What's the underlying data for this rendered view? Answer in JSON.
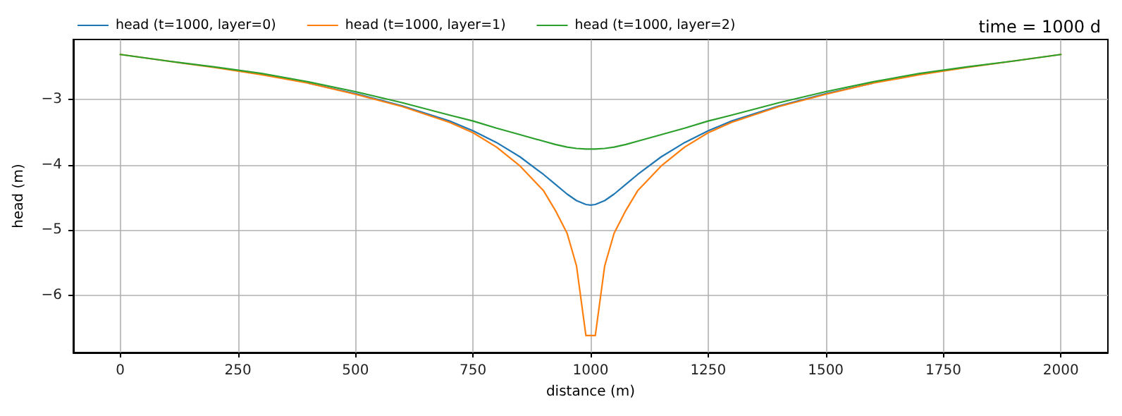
{
  "chart_data": {
    "type": "line",
    "title": "time = 1000 d",
    "xlabel": "distance (m)",
    "ylabel": "head (m)",
    "x": [
      0,
      100,
      200,
      300,
      400,
      500,
      600,
      700,
      750,
      800,
      850,
      900,
      925,
      950,
      970,
      990,
      1000,
      1010,
      1030,
      1050,
      1075,
      1100,
      1150,
      1200,
      1250,
      1300,
      1400,
      1500,
      1600,
      1700,
      1800,
      1900,
      2000
    ],
    "series": [
      {
        "name": "head (t=1000, layer=0)",
        "color": "#1f77b4",
        "values": [
          null,
          null,
          null,
          null,
          -2.75,
          -2.91,
          -3.1,
          -3.33,
          -3.48,
          -3.66,
          -3.88,
          -4.15,
          -4.3,
          -4.45,
          -4.55,
          -4.61,
          -4.62,
          -4.61,
          -4.55,
          -4.45,
          -4.3,
          -4.15,
          -3.88,
          -3.66,
          -3.48,
          -3.33,
          -3.1,
          -2.91,
          -2.75,
          null,
          null,
          null,
          null
        ]
      },
      {
        "name": "head (t=1000, layer=1)",
        "color": "#ff7f0e",
        "values": [
          -2.31,
          -2.41,
          -2.51,
          -2.62,
          -2.75,
          -2.92,
          -3.11,
          -3.35,
          -3.51,
          -3.73,
          -4.02,
          -4.4,
          -4.7,
          -5.05,
          -5.55,
          -6.62,
          -6.62,
          -6.62,
          -5.55,
          -5.05,
          -4.7,
          -4.4,
          -4.02,
          -3.73,
          -3.51,
          -3.35,
          -3.11,
          -2.92,
          -2.75,
          -2.62,
          -2.51,
          -2.41,
          -2.31
        ]
      },
      {
        "name": "head (t=1000, layer=2)",
        "color": "#2ca02c",
        "values": [
          -2.31,
          -2.41,
          -2.5,
          -2.6,
          -2.73,
          -2.88,
          -3.05,
          -3.24,
          -3.33,
          -3.44,
          -3.54,
          -3.64,
          -3.69,
          -3.73,
          -3.75,
          -3.76,
          -3.76,
          -3.76,
          -3.75,
          -3.73,
          -3.69,
          -3.64,
          -3.54,
          -3.44,
          -3.33,
          -3.24,
          -3.05,
          -2.88,
          -2.73,
          -2.6,
          -2.5,
          -2.41,
          -2.31
        ]
      }
    ],
    "xlim": [
      -100,
      2100
    ],
    "xticks": [
      0,
      250,
      500,
      750,
      1000,
      1250,
      1500,
      1750,
      2000
    ],
    "ylim": [
      -6.88,
      -2.08
    ],
    "yticks": [
      -6,
      -5,
      -4,
      -3
    ],
    "grid": true,
    "legend": "top left",
    "marker": "none",
    "line_style": "solid"
  }
}
